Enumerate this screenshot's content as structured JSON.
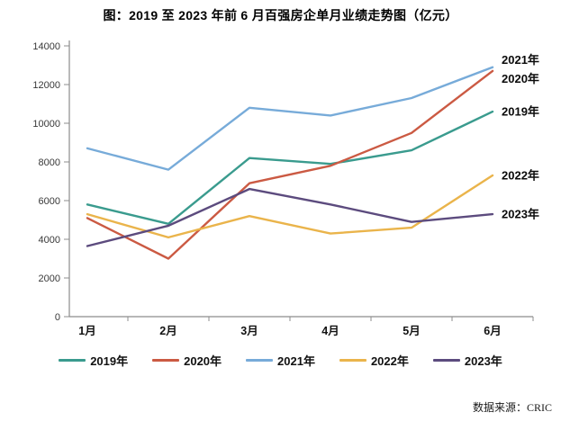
{
  "header": {
    "title": "图：2019 至 2023 年前 6 月百强房企单月业绩走势图（亿元）"
  },
  "chart_data": {
    "type": "line",
    "title": "图：2019 至 2023 年前 6 月百强房企单月业绩走势图（亿元）",
    "unit": "亿元",
    "categories": [
      "1月",
      "2月",
      "3月",
      "4月",
      "5月",
      "6月"
    ],
    "series": [
      {
        "name": "2019年",
        "color": "#3A9B8E",
        "values": [
          5800,
          4800,
          8200,
          7900,
          8600,
          10600
        ]
      },
      {
        "name": "2020年",
        "color": "#CB5A43",
        "values": [
          5100,
          3000,
          6900,
          7800,
          9500,
          12700
        ]
      },
      {
        "name": "2021年",
        "color": "#77ABD9",
        "values": [
          8700,
          7600,
          10800,
          10400,
          11300,
          12900
        ]
      },
      {
        "name": "2022年",
        "color": "#EAB44B",
        "values": [
          5300,
          4100,
          5200,
          4300,
          4600,
          7300
        ]
      },
      {
        "name": "2023年",
        "color": "#5C4B7E",
        "values": [
          3650,
          4700,
          6600,
          5800,
          4900,
          5300
        ]
      }
    ],
    "ylim": [
      0,
      14000
    ],
    "ytick_step": 2000,
    "ytick_labels": [
      "0",
      "2000",
      "4000",
      "6000",
      "8000",
      "10000",
      "12000",
      "14000"
    ],
    "grid": false,
    "legend_position": "bottom",
    "end_labels_top_to_bottom": [
      "2021年",
      "2020年",
      "2019年",
      "2022年",
      "2023年"
    ]
  },
  "source": {
    "label": "数据来源：CRIC"
  }
}
